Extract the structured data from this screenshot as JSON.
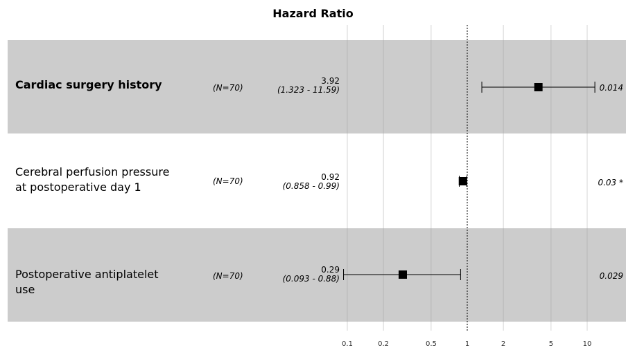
{
  "chart_data": {
    "type": "forest",
    "title": "Hazard Ratio",
    "x_scale": "log",
    "xlim": [
      0.0962,
      15
    ],
    "reference_line": 1,
    "x_ticks": [
      0.1,
      0.2,
      0.5,
      1,
      2,
      5,
      10
    ],
    "x_tick_labels": [
      "0.1",
      "0.2",
      "0.5",
      "1",
      "2",
      "5",
      "10"
    ],
    "rows": [
      {
        "label_lines": [
          "Cardiac surgery history"
        ],
        "n_label": "(N=70)",
        "hr_text": "3.92",
        "ci_text": "(1.323 - 11.59)",
        "hr": 3.92,
        "lo": 1.323,
        "hi": 11.59,
        "p_text": "0.014",
        "star": "",
        "shaded": true
      },
      {
        "label_lines": [
          "Cerebral perfusion pressure",
          "at postoperative day 1"
        ],
        "n_label": "(N=70)",
        "hr_text": "0.92",
        "ci_text": "(0.858 - 0.99)",
        "hr": 0.92,
        "lo": 0.858,
        "hi": 0.99,
        "p_text": "0.03",
        "star": "*",
        "shaded": false
      },
      {
        "label_lines": [
          "Postoperative antiplatelet",
          "use"
        ],
        "n_label": "(N=70)",
        "hr_text": "0.29",
        "ci_text": "(0.093 - 0.88)",
        "hr": 0.29,
        "lo": 0.093,
        "hi": 0.88,
        "p_text": "0.029",
        "star": "",
        "shaded": true
      }
    ]
  }
}
